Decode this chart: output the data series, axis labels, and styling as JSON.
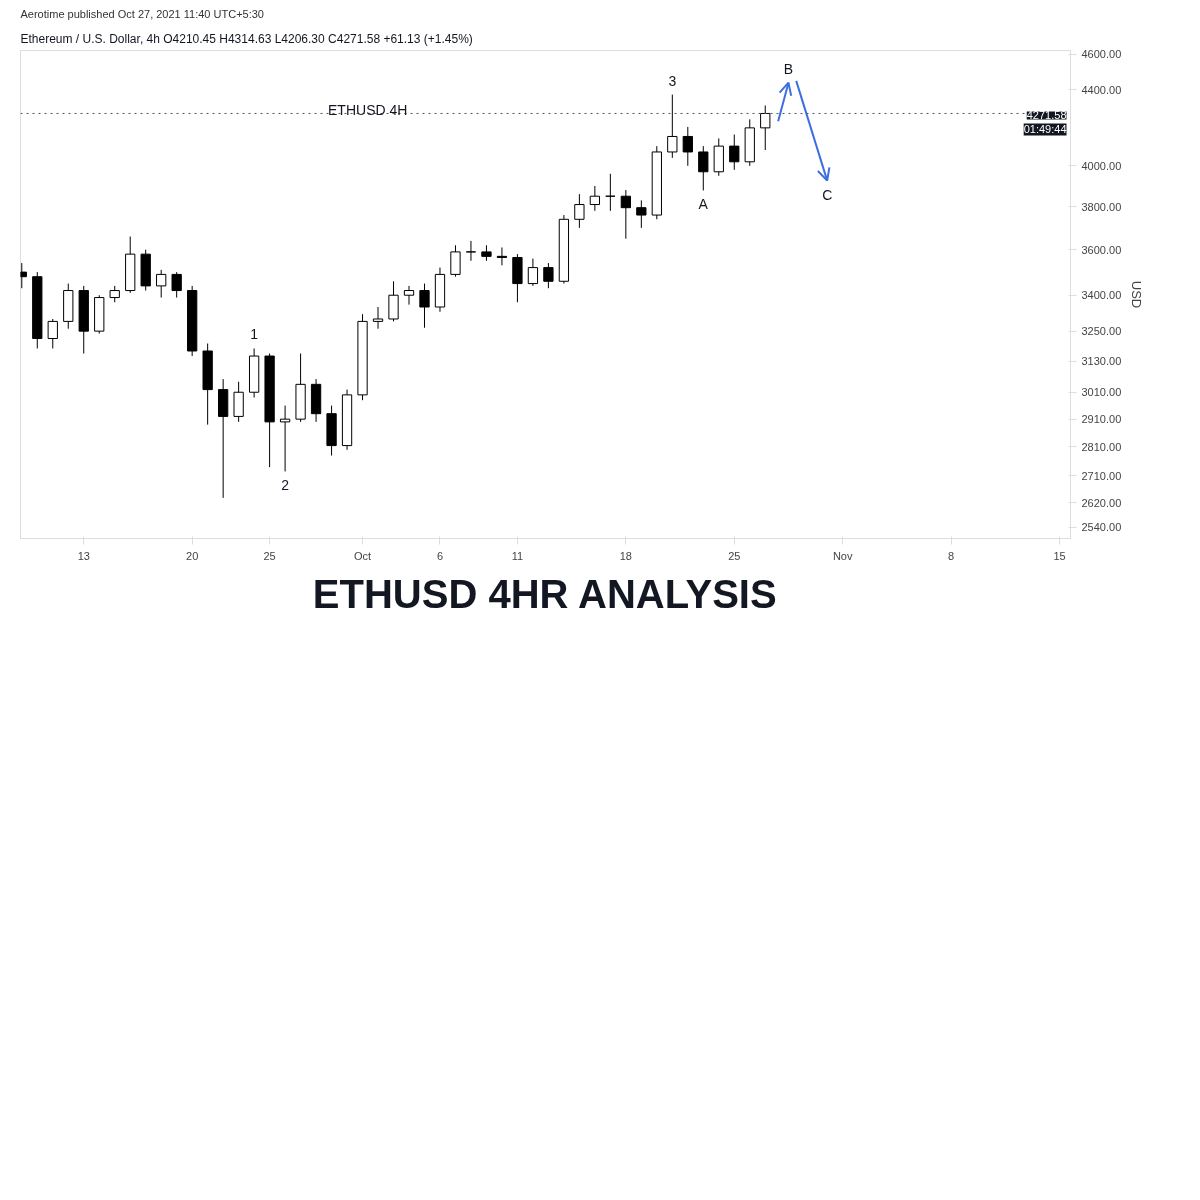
{
  "chart_data": {
    "type": "candlestick",
    "title": "ETHUSD 4HR ANALYSIS",
    "subtitle": "Ethereum / U.S. Dollar, 4h  O4210.45  H4314.63  L4206.30  C4271.58  +61.13 (+1.45%)",
    "ylabel": "USD",
    "color": "#000000",
    "x": [
      "2021-09-09",
      "2021-09-10",
      "2021-09-11",
      "2021-09-12",
      "2021-09-13",
      "2021-09-14",
      "2021-09-15",
      "2021-09-16",
      "2021-09-17",
      "2021-09-18",
      "2021-09-19",
      "2021-09-20",
      "2021-09-21",
      "2021-09-22",
      "2021-09-23",
      "2021-09-24",
      "2021-09-25",
      "2021-09-26",
      "2021-09-27",
      "2021-09-28",
      "2021-09-29",
      "2021-09-30",
      "2021-10-01",
      "2021-10-02",
      "2021-10-03",
      "2021-10-04",
      "2021-10-05",
      "2021-10-06",
      "2021-10-07",
      "2021-10-08",
      "2021-10-09",
      "2021-10-10",
      "2021-10-11",
      "2021-10-12",
      "2021-10-13",
      "2021-10-14",
      "2021-10-15",
      "2021-10-16",
      "2021-10-17",
      "2021-10-18",
      "2021-10-19",
      "2021-10-20",
      "2021-10-21",
      "2021-10-22",
      "2021-10-23",
      "2021-10-24",
      "2021-10-25",
      "2021-10-26",
      "2021-10-27"
    ],
    "ohlc": [
      [
        3500,
        3540,
        3430,
        3480
      ],
      [
        3480,
        3500,
        3180,
        3220
      ],
      [
        3220,
        3300,
        3180,
        3290
      ],
      [
        3290,
        3450,
        3260,
        3420
      ],
      [
        3420,
        3440,
        3160,
        3250
      ],
      [
        3250,
        3400,
        3240,
        3390
      ],
      [
        3390,
        3440,
        3370,
        3420
      ],
      [
        3420,
        3660,
        3410,
        3580
      ],
      [
        3580,
        3600,
        3420,
        3440
      ],
      [
        3440,
        3510,
        3390,
        3490
      ],
      [
        3490,
        3500,
        3390,
        3420
      ],
      [
        3420,
        3440,
        3150,
        3170
      ],
      [
        3170,
        3200,
        2890,
        3020
      ],
      [
        3020,
        3060,
        2636,
        2920
      ],
      [
        2920,
        3050,
        2900,
        3010
      ],
      [
        3010,
        3180,
        2990,
        3150
      ],
      [
        3150,
        3160,
        2740,
        2900
      ],
      [
        2900,
        2960,
        2725,
        2910
      ],
      [
        2910,
        3160,
        2900,
        3040
      ],
      [
        3040,
        3060,
        2900,
        2930
      ],
      [
        2930,
        2960,
        2780,
        2815
      ],
      [
        2815,
        3020,
        2800,
        3000
      ],
      [
        3000,
        3320,
        2980,
        3290
      ],
      [
        3290,
        3350,
        3260,
        3300
      ],
      [
        3300,
        3460,
        3290,
        3400
      ],
      [
        3400,
        3440,
        3360,
        3420
      ],
      [
        3420,
        3450,
        3264,
        3350
      ],
      [
        3350,
        3520,
        3330,
        3490
      ],
      [
        3490,
        3620,
        3480,
        3590
      ],
      [
        3590,
        3640,
        3550,
        3590
      ],
      [
        3590,
        3620,
        3550,
        3570
      ],
      [
        3570,
        3610,
        3530,
        3565
      ],
      [
        3565,
        3580,
        3370,
        3450
      ],
      [
        3450,
        3560,
        3440,
        3520
      ],
      [
        3520,
        3540,
        3430,
        3460
      ],
      [
        3460,
        3760,
        3450,
        3740
      ],
      [
        3740,
        3860,
        3700,
        3810
      ],
      [
        3810,
        3900,
        3780,
        3850
      ],
      [
        3850,
        3960,
        3780,
        3850
      ],
      [
        3850,
        3880,
        3650,
        3795
      ],
      [
        3795,
        3830,
        3700,
        3760
      ],
      [
        3760,
        4100,
        3740,
        4070
      ],
      [
        4070,
        4374,
        4040,
        4150
      ],
      [
        4150,
        4200,
        4000,
        4070
      ],
      [
        4070,
        4100,
        3878,
        3970
      ],
      [
        3970,
        4140,
        3950,
        4100
      ],
      [
        4100,
        4160,
        3980,
        4020
      ],
      [
        4020,
        4240,
        4000,
        4195
      ],
      [
        4195,
        4314.63,
        4080,
        4271.58
      ]
    ],
    "series": [
      {
        "type": "line",
        "color": "#3d6fe0",
        "x": [
          "2021-10-27T20:00",
          "2021-10-28T12:00"
        ],
        "values": [
          4230,
          4440
        ]
      },
      {
        "type": "line",
        "color": "#3d6fe0",
        "x": [
          "2021-10-29T00:00",
          "2021-10-31T00:00"
        ],
        "values": [
          4450,
          3926
        ]
      }
    ],
    "xlim": [
      "2021-09-08T22:00",
      "2021-11-15T17:00"
    ],
    "xticks": [
      {
        "value": "2021-09-13",
        "label": "13"
      },
      {
        "value": "2021-09-20",
        "label": "20"
      },
      {
        "value": "2021-09-25",
        "label": "25"
      },
      {
        "value": "2021-10-01",
        "label": "Oct"
      },
      {
        "value": "2021-10-06",
        "label": "6"
      },
      {
        "value": "2021-10-11",
        "label": "11"
      },
      {
        "value": "2021-10-18",
        "label": "18"
      },
      {
        "value": "2021-10-25",
        "label": "25"
      },
      {
        "value": "2021-11-01",
        "label": "Nov"
      },
      {
        "value": "2021-11-08",
        "label": "8"
      },
      {
        "value": "2021-11-15",
        "label": "15"
      }
    ],
    "log": true,
    "ylim": [
      2505,
      4623
    ],
    "yticks": [
      {
        "value": 2540,
        "label": "2540.00"
      },
      {
        "value": 2620,
        "label": "2620.00"
      },
      {
        "value": 2710,
        "label": "2710.00"
      },
      {
        "value": 2810,
        "label": "2810.00"
      },
      {
        "value": 2910,
        "label": "2910.00"
      },
      {
        "value": 3010,
        "label": "3010.00"
      },
      {
        "value": 3130,
        "label": "3130.00"
      },
      {
        "value": 3250,
        "label": "3250.00"
      },
      {
        "value": 3400,
        "label": "3400.00"
      },
      {
        "value": 3600,
        "label": "3600.00"
      },
      {
        "value": 3800,
        "label": "3800.00"
      },
      {
        "value": 4000,
        "label": "4000.00"
      },
      {
        "value": 4400,
        "label": "4400.00"
      },
      {
        "value": 4600,
        "label": "4600.00"
      }
    ],
    "ref_lines": [
      {
        "axis": "y",
        "value": 4271.58,
        "label": "4271.58",
        "line_style": "dotted",
        "color": "#555555"
      }
    ],
    "annotations": [
      "Aerotime published Oct 27, 2021 11:40 UTC+5:30",
      "01:49:44",
      {
        "text": "ETHUSD 4H",
        "x": "2021-10-01T08:00",
        "y": 4290
      },
      {
        "text": "1",
        "x": "2021-09-24",
        "y": 3180
      },
      {
        "text": "2",
        "x": "2021-09-26",
        "y": 2725
      },
      {
        "text": "3",
        "x": "2021-10-21",
        "y": 4374
      },
      {
        "text": "A",
        "x": "2021-10-23",
        "y": 3878
      },
      {
        "text": "B",
        "x": "2021-10-28T12:00",
        "y": 4440
      },
      {
        "text": "C",
        "x": "2021-10-31T00:00",
        "y": 3926
      }
    ]
  }
}
